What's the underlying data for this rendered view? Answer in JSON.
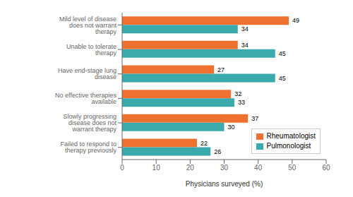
{
  "chart_data": {
    "type": "bar",
    "orientation": "horizontal",
    "categories": [
      "Mild level of disease does not warrant therapy",
      "Unable to tolerate therapy",
      "Have end-stage lung disease",
      "No effective therapies available",
      "Slowly progressing disease does not warrant therapy",
      "Failed to respond to therapy previously"
    ],
    "series": [
      {
        "name": "Rheumatologist",
        "color": "#F07030",
        "values": [
          49,
          34,
          27,
          32,
          37,
          22
        ]
      },
      {
        "name": "Pulmonologist",
        "color": "#3BAAAD",
        "values": [
          34,
          45,
          45,
          33,
          30,
          26
        ]
      }
    ],
    "xlabel": "Physicians surveyed (%)",
    "xlim": [
      0,
      60
    ],
    "xticks": [
      0,
      10,
      20,
      30,
      40,
      50,
      60
    ],
    "data_labels": true,
    "legend": "lower right",
    "grid": false
  }
}
